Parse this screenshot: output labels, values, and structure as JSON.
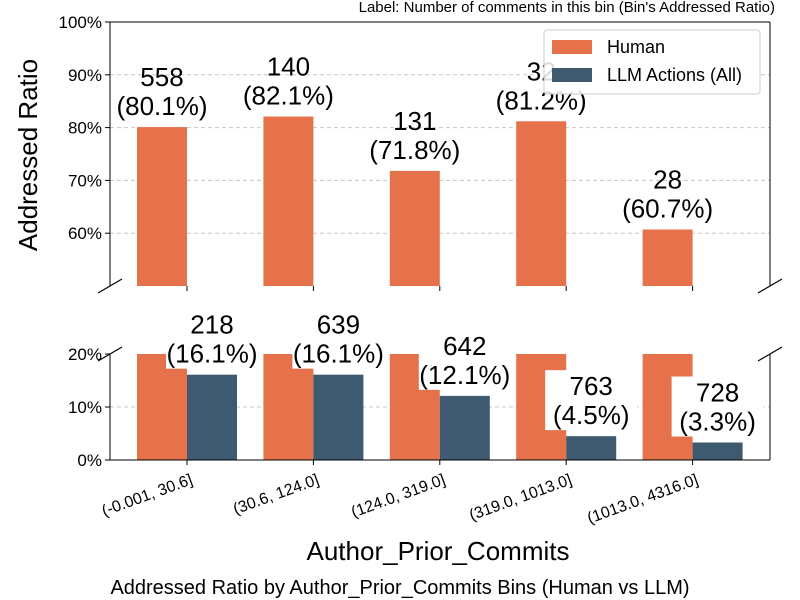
{
  "chart_data": {
    "type": "bar",
    "note": "Label: Number of comments in this bin (Bin's Addressed Ratio)",
    "title": "Addressed Ratio by Author_Prior_Commits Bins (Human vs LLM)",
    "xlabel": "Author_Prior_Commits",
    "ylabel": "Addressed Ratio",
    "broken_axis": true,
    "top_ylim": [
      50,
      100
    ],
    "top_yticks": [
      "60%",
      "70%",
      "80%",
      "90%",
      "100%"
    ],
    "bottom_ylim": [
      0,
      20
    ],
    "bottom_yticks": [
      "0%",
      "10%",
      "20%"
    ],
    "grid": true,
    "legend_position": "upper right",
    "categories": [
      "(-0.001, 30.6]",
      "(30.6, 124.0]",
      "(124.0, 319.0]",
      "(319.0, 1013.0]",
      "(1013.0, 4316.0]"
    ],
    "series": [
      {
        "name": "Human",
        "color": "#e5724a",
        "values": [
          80.1,
          82.1,
          71.8,
          81.2,
          60.7
        ],
        "counts": [
          "558",
          "140",
          "131",
          "32",
          "28"
        ],
        "pct_labels": [
          "(80.1%)",
          "(82.1%)",
          "(71.8%)",
          "(81.2%)",
          "(60.7%)"
        ]
      },
      {
        "name": "LLM Actions (All)",
        "color": "#3d5a70",
        "values": [
          16.1,
          16.1,
          12.1,
          4.5,
          3.3
        ],
        "counts": [
          "218",
          "639",
          "642",
          "763",
          "728"
        ],
        "pct_labels": [
          "(16.1%)",
          "(16.1%)",
          "(12.1%)",
          "(4.5%)",
          "(3.3%)"
        ]
      }
    ]
  }
}
